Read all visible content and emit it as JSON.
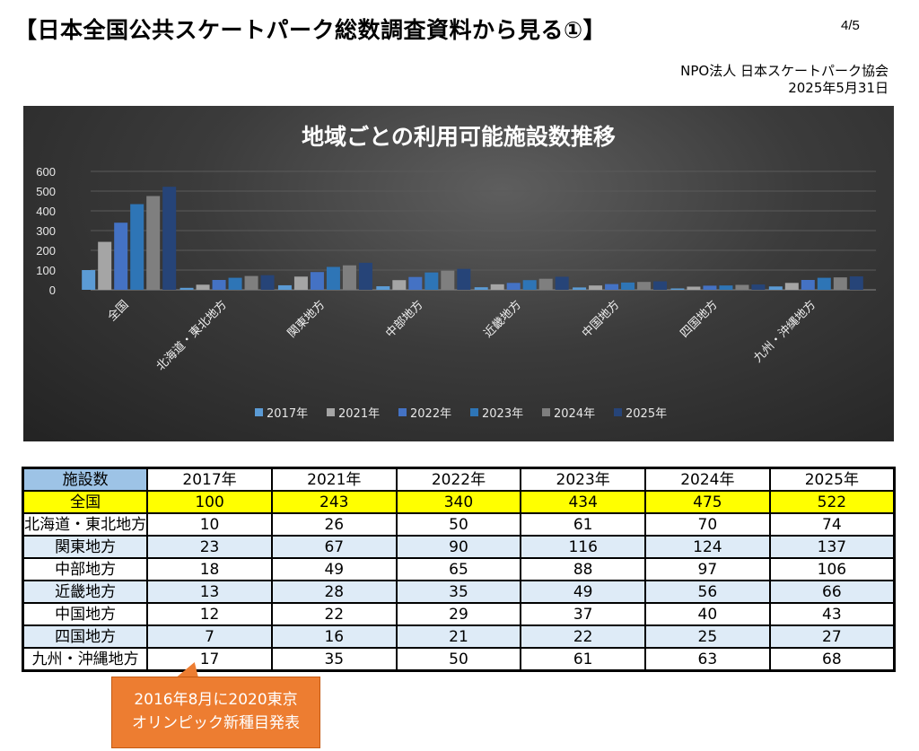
{
  "header": {
    "title": "【日本全国公共スケートパーク総数調査資料から見る①】",
    "page": "4/5",
    "org": "NPO法人 日本スケートパーク協会",
    "date": "2025年5月31日"
  },
  "chart_data": {
    "type": "bar",
    "title": "地域ごとの利用可能施設数推移",
    "categories": [
      "全国",
      "北海道・東北地方",
      "関東地方",
      "中部地方",
      "近畿地方",
      "中国地方",
      "四国地方",
      "九州・沖縄地方"
    ],
    "series": [
      {
        "name": "2017年",
        "values": [
          100,
          10,
          23,
          18,
          13,
          12,
          7,
          17
        ],
        "color": "#5b9bd5"
      },
      {
        "name": "2021年",
        "values": [
          243,
          26,
          67,
          49,
          28,
          22,
          16,
          35
        ],
        "color": "#a5a5a5"
      },
      {
        "name": "2022年",
        "values": [
          340,
          50,
          90,
          65,
          35,
          29,
          21,
          50
        ],
        "color": "#4472c4"
      },
      {
        "name": "2023年",
        "values": [
          434,
          61,
          116,
          88,
          49,
          37,
          22,
          61
        ],
        "color": "#2e75b6"
      },
      {
        "name": "2024年",
        "values": [
          475,
          70,
          124,
          97,
          56,
          40,
          25,
          63
        ],
        "color": "#7f7f7f"
      },
      {
        "name": "2025年",
        "values": [
          522,
          74,
          137,
          106,
          66,
          43,
          27,
          68
        ],
        "color": "#264478"
      }
    ],
    "yticks": [
      "0",
      "100",
      "200",
      "300",
      "400",
      "500",
      "600"
    ],
    "ylim": [
      0,
      600
    ],
    "grid": true,
    "legend": "bottom"
  },
  "table": {
    "corner": "施設数",
    "years": [
      "2017年",
      "2021年",
      "2022年",
      "2023年",
      "2024年",
      "2025年"
    ]
  },
  "callout": {
    "line1": "2016年8月に2020東京",
    "line2": "オリンピック新種目発表"
  },
  "colors": {
    "national_row": "#ffff00",
    "alt_row": "#deebf7",
    "header_corner": "#9dc3e6",
    "callout": "#ed7d31"
  }
}
